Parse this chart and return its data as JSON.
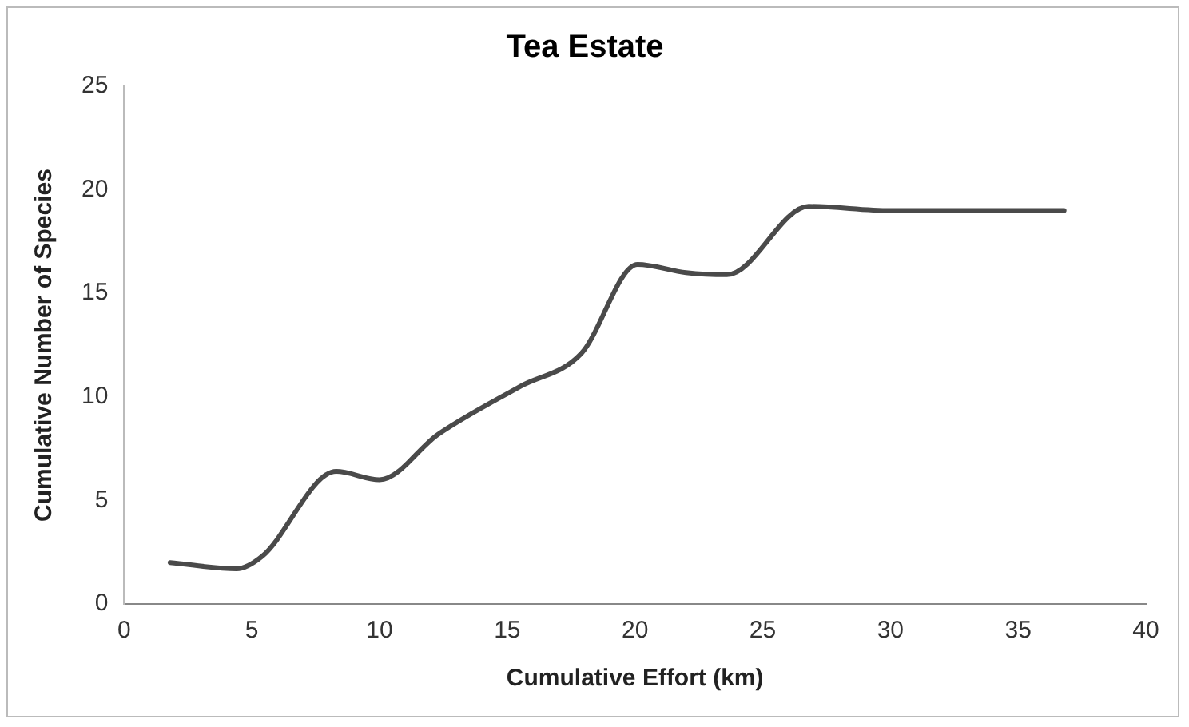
{
  "chart_data": {
    "type": "line",
    "title": "Tea Estate",
    "xlabel": "Cumulative Effort (km)",
    "ylabel": "Cumulative Number of Species",
    "x": [
      1.8,
      4.4,
      5.4,
      8.3,
      10,
      12.3,
      15.5,
      17.9,
      20.1,
      22,
      23.6,
      26.8,
      30,
      36.8
    ],
    "series": [
      {
        "color": "#4a4a4a",
        "values": [
          2,
          1.7,
          2.3,
          6.4,
          6,
          8.2,
          10.5,
          12.1,
          16.4,
          16,
          15.9,
          19.2,
          19,
          19
        ]
      }
    ],
    "xlim": [
      0,
      40
    ],
    "xticks": [
      0,
      5,
      10,
      15,
      20,
      25,
      30,
      35,
      40
    ],
    "ylim": [
      0,
      25
    ],
    "yticks": [
      0,
      5,
      10,
      15,
      20,
      25
    ],
    "grid": false,
    "legend": false,
    "marker": "none",
    "line_style": "solid"
  }
}
